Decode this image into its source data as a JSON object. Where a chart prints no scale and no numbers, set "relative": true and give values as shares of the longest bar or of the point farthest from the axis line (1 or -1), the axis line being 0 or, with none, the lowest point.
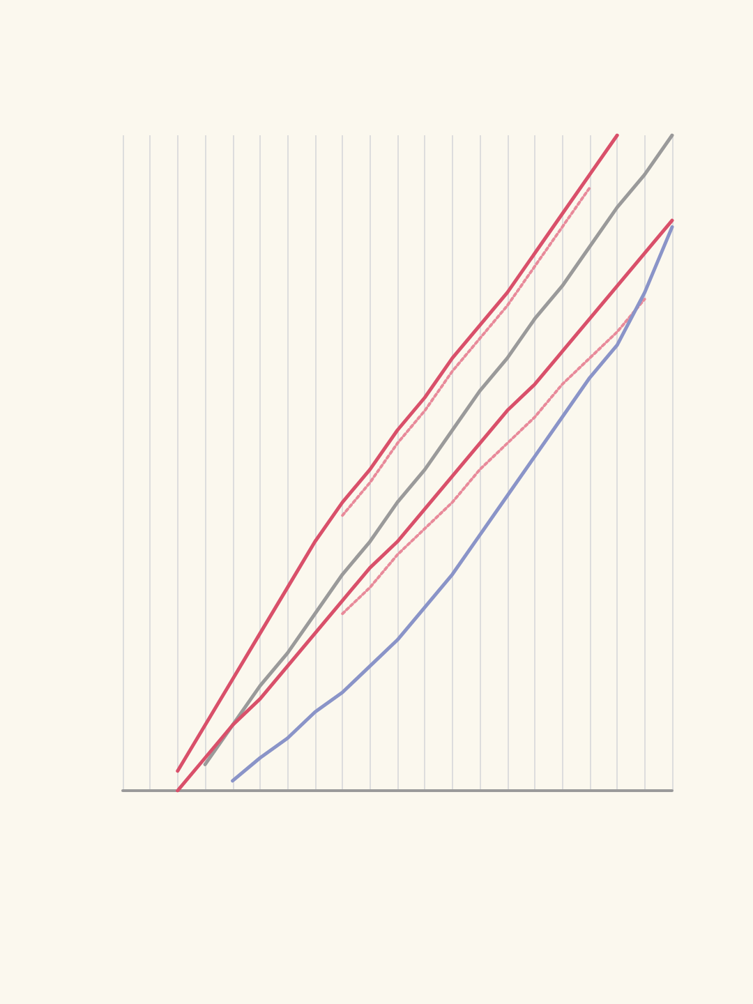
{
  "chart_data": {
    "type": "line",
    "relative": true,
    "grid": "x",
    "marker": "none",
    "line_style": "solid",
    "categories": [
      null,
      null,
      null,
      null,
      null,
      null,
      null,
      null,
      null,
      null,
      null,
      null,
      null,
      null,
      null,
      null,
      null,
      null,
      null,
      null,
      null
    ],
    "series": [
      {
        "color": "#d9506a",
        "values": [
          null,
          null,
          0.03,
          0.1,
          0.17,
          0.24,
          0.31,
          0.38,
          0.44,
          0.49,
          0.55,
          0.6,
          0.66,
          0.71,
          0.76,
          0.82,
          0.88,
          0.94,
          1.0,
          null,
          null
        ]
      },
      {
        "color": "#e88a9a",
        "line_style": "dotted",
        "values": [
          null,
          null,
          null,
          null,
          null,
          null,
          null,
          null,
          0.42,
          0.47,
          0.53,
          0.58,
          0.64,
          0.69,
          0.74,
          0.8,
          0.86,
          0.92,
          null,
          null,
          null
        ]
      },
      {
        "color": "#9a9a9a",
        "values": [
          null,
          null,
          null,
          0.04,
          0.1,
          0.16,
          0.21,
          0.27,
          0.33,
          0.38,
          0.44,
          0.49,
          0.55,
          0.61,
          0.66,
          0.72,
          0.77,
          0.83,
          0.89,
          0.94,
          1.0
        ]
      },
      {
        "color": "#d9506a",
        "values": [
          null,
          null,
          0,
          0.05,
          0.1,
          0.14,
          0.19,
          0.24,
          0.29,
          0.34,
          0.38,
          0.43,
          0.48,
          0.53,
          0.58,
          0.62,
          0.67,
          0.72,
          0.77,
          0.82,
          0.87
        ]
      },
      {
        "color": "#e88a9a",
        "line_style": "dotted",
        "values": [
          null,
          null,
          null,
          null,
          null,
          null,
          null,
          null,
          0.27,
          0.31,
          0.36,
          0.4,
          0.44,
          0.49,
          0.53,
          0.57,
          0.62,
          0.66,
          0.7,
          0.75,
          null
        ]
      },
      {
        "color": "#8a94c8",
        "values": [
          null,
          null,
          null,
          null,
          0.015,
          0.05,
          0.08,
          0.12,
          0.15,
          0.19,
          0.23,
          0.28,
          0.33,
          0.39,
          0.45,
          0.51,
          0.57,
          0.63,
          0.68,
          0.76,
          0.86
        ]
      }
    ]
  }
}
